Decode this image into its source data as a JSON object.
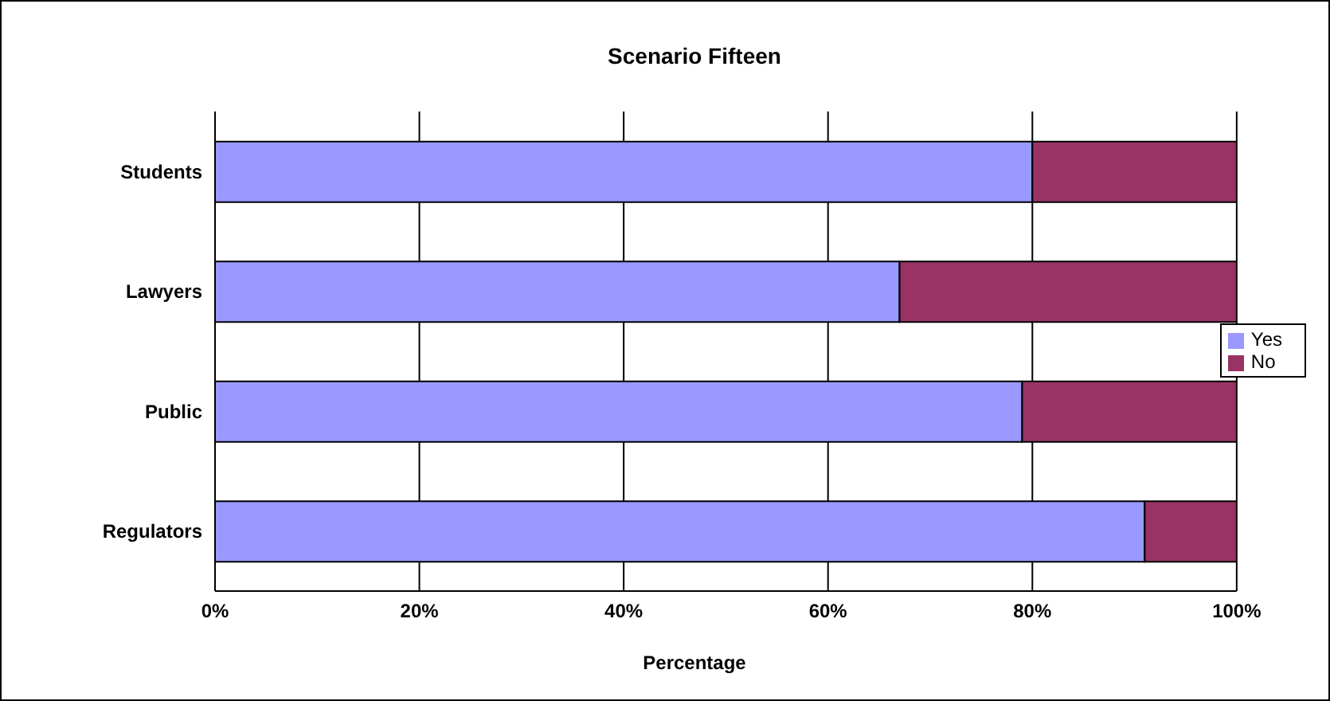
{
  "chart_data": {
    "type": "bar",
    "orientation": "horizontal",
    "stacked": true,
    "title": "Scenario Fifteen",
    "xlabel": "Percentage",
    "categories": [
      "Students",
      "Lawyers",
      "Public",
      "Regulators"
    ],
    "series": [
      {
        "name": "Yes",
        "color": "#9999ff",
        "values": [
          80,
          67,
          79,
          91
        ]
      },
      {
        "name": "No",
        "color": "#993366",
        "values": [
          20,
          33,
          21,
          9
        ]
      }
    ],
    "xlim": [
      0,
      100
    ],
    "xticks": [
      {
        "value": 0,
        "label": "0%"
      },
      {
        "value": 20,
        "label": "20%"
      },
      {
        "value": 40,
        "label": "40%"
      },
      {
        "value": 60,
        "label": "60%"
      },
      {
        "value": 80,
        "label": "80%"
      },
      {
        "value": 100,
        "label": "100%"
      }
    ],
    "grid": "x",
    "legend": "right"
  }
}
